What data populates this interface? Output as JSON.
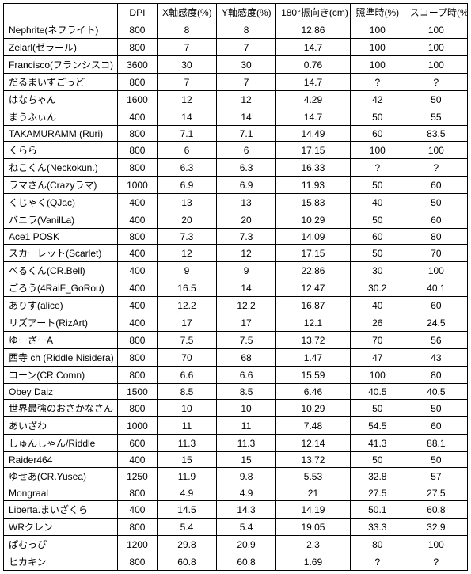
{
  "headers": [
    "",
    "DPI",
    "X軸感度(%)",
    "Y軸感度(%)",
    "180°振向き(cm)",
    "照準時(%)",
    "スコープ時(%)"
  ],
  "rows": [
    [
      "Nephrite(ネフライト)",
      "800",
      "8",
      "8",
      "12.86",
      "100",
      "100"
    ],
    [
      "Zelarl(ゼラール)",
      "800",
      "7",
      "7",
      "14.7",
      "100",
      "100"
    ],
    [
      "Francisco(フランシスコ)",
      "3600",
      "30",
      "30",
      "0.76",
      "100",
      "100"
    ],
    [
      "だるまいずごっど",
      "800",
      "7",
      "7",
      "14.7",
      "?",
      "?"
    ],
    [
      "はなちゃん",
      "1600",
      "12",
      "12",
      "4.29",
      "42",
      "50"
    ],
    [
      "まうふぃん",
      "400",
      "14",
      "14",
      "14.7",
      "50",
      "55"
    ],
    [
      "TAKAMURAMM (Ruri)",
      "800",
      "7.1",
      "7.1",
      "14.49",
      "60",
      "83.5"
    ],
    [
      "くらら",
      "800",
      "6",
      "6",
      "17.15",
      "100",
      "100"
    ],
    [
      "ねこくん(Neckokun.)",
      "800",
      "6.3",
      "6.3",
      "16.33",
      "?",
      "?"
    ],
    [
      "ラマさん(Crazyラマ)",
      "1000",
      "6.9",
      "6.9",
      "11.93",
      "50",
      "60"
    ],
    [
      "くじゃく(QJac)",
      "400",
      "13",
      "13",
      "15.83",
      "40",
      "50"
    ],
    [
      "バニラ(VanilLa)",
      "400",
      "20",
      "20",
      "10.29",
      "50",
      "60"
    ],
    [
      "Ace1 POSK",
      "800",
      "7.3",
      "7.3",
      "14.09",
      "60",
      "80"
    ],
    [
      "スカーレット(Scarlet)",
      "400",
      "12",
      "12",
      "17.15",
      "50",
      "70"
    ],
    [
      "べるくん(CR.Bell)",
      "400",
      "9",
      "9",
      "22.86",
      "30",
      "100"
    ],
    [
      "ごろう(4RaiF_GoRou)",
      "400",
      "16.5",
      "14",
      "12.47",
      "30.2",
      "40.1"
    ],
    [
      "ありす(alice)",
      "400",
      "12.2",
      "12.2",
      "16.87",
      "40",
      "60"
    ],
    [
      "リズアート(RizArt)",
      "400",
      "17",
      "17",
      "12.1",
      "26",
      "24.5"
    ],
    [
      "ゆーざーA",
      "800",
      "7.5",
      "7.5",
      "13.72",
      "70",
      "56"
    ],
    [
      "西寺 ch (Riddle Nisidera)",
      "800",
      "70",
      "68",
      "1.47",
      "47",
      "43"
    ],
    [
      "コーン(CR.Comn)",
      "800",
      "6.6",
      "6.6",
      "15.59",
      "100",
      "80"
    ],
    [
      "Obey Daiz",
      "1500",
      "8.5",
      "8.5",
      "6.46",
      "40.5",
      "40.5"
    ],
    [
      "世界最強のおさかなさん",
      "800",
      "10",
      "10",
      "10.29",
      "50",
      "50"
    ],
    [
      "あいざわ",
      "1000",
      "11",
      "11",
      "7.48",
      "54.5",
      "60"
    ],
    [
      "しゅんしゃん/Riddle",
      "600",
      "11.3",
      "11.3",
      "12.14",
      "41.3",
      "88.1"
    ],
    [
      "Raider464",
      "400",
      "15",
      "15",
      "13.72",
      "50",
      "50"
    ],
    [
      "ゆせあ(CR.Yusea)",
      "1250",
      "11.9",
      "9.8",
      "5.53",
      "32.8",
      "57"
    ],
    [
      "Mongraal",
      "800",
      "4.9",
      "4.9",
      "21",
      "27.5",
      "27.5"
    ],
    [
      "Liberta.まいざくら",
      "400",
      "14.5",
      "14.3",
      "14.19",
      "50.1",
      "60.8"
    ],
    [
      "WRクレン",
      "800",
      "5.4",
      "5.4",
      "19.05",
      "33.3",
      "32.9"
    ],
    [
      "ぱむっぴ",
      "1200",
      "29.8",
      "20.9",
      "2.3",
      "80",
      "100"
    ],
    [
      "ヒカキン",
      "800",
      "60.8",
      "60.8",
      "1.69",
      "?",
      "?"
    ]
  ]
}
